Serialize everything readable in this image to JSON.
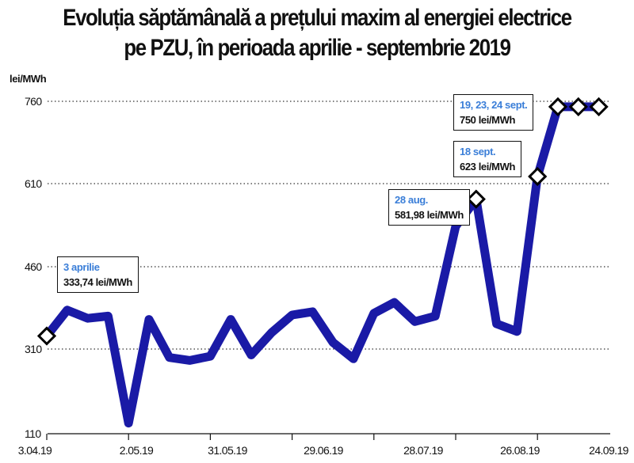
{
  "title": {
    "line1": "Evoluția săptămânală a prețului maxim al energiei electrice",
    "line2": "pe PZU, în perioada aprilie - septembrie 2019"
  },
  "colors": {
    "series": "#1a1aa6",
    "annotation_date": "#3a7ed8",
    "gridline": "#333333",
    "marker_fill": "#ffffff",
    "marker_stroke": "#000000"
  },
  "chart_data": {
    "type": "line",
    "title": "Evoluția săptămânală a prețului maxim al energiei electrice pe PZU, în perioada aprilie - septembrie 2019",
    "ylabel": "lei/MWh",
    "xlabel": "",
    "ylim": [
      110,
      760
    ],
    "yticks": [
      110,
      310,
      460,
      610,
      760
    ],
    "ytick_labels": [
      "110",
      "310",
      "460",
      "610",
      "760"
    ],
    "xtick_labels": [
      "3.04.19",
      "2.05.19",
      "31.05.19",
      "29.06.19",
      "28.07.19",
      "26.08.19",
      "24.09.19"
    ],
    "grid": "horizontal dotted",
    "legend": "none",
    "series": [
      {
        "values": [
          333.74,
          381,
          366,
          370,
          135,
          364,
          290,
          283,
          293,
          364,
          296,
          340,
          372,
          378,
          322,
          287,
          375,
          395,
          360,
          370,
          533,
          581.98,
          356,
          342,
          623,
          750,
          750,
          750
        ]
      }
    ],
    "annotations": [
      {
        "date": "3 aprilie",
        "value": "333,74 lei/MWh",
        "point_index": 0
      },
      {
        "date": "28 aug.",
        "value": "581,98 lei/MWh",
        "point_index": 21
      },
      {
        "date": "18 sept.",
        "value": "623 lei/MWh",
        "point_index": 24
      },
      {
        "date": "19, 23, 24 sept.",
        "value": "750 lei/MWh",
        "point_index": 25
      }
    ],
    "marked_points": [
      0,
      21,
      24,
      25,
      26,
      27
    ]
  }
}
